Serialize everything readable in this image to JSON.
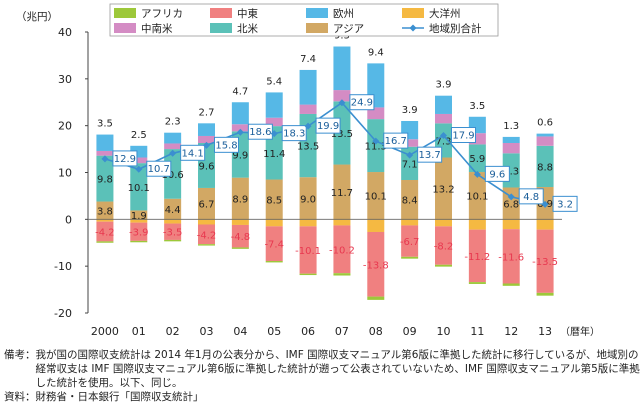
{
  "chart_data": {
    "type": "bar",
    "unit_label": "（兆円）",
    "xunit_label": "（暦年）",
    "categories": [
      "2000",
      "01",
      "02",
      "03",
      "04",
      "05",
      "06",
      "07",
      "08",
      "09",
      "10",
      "11",
      "12",
      "13"
    ],
    "ylim": [
      -20,
      40
    ],
    "yticks": [
      -20,
      -10,
      0,
      10,
      20,
      30,
      40
    ],
    "grid": false,
    "legend_position": "top",
    "series": [
      {
        "name": "アフリカ",
        "color": "#9dc83a",
        "values": [
          -0.3,
          -0.3,
          -0.3,
          -0.3,
          -0.3,
          -0.3,
          -0.3,
          -0.5,
          -0.7,
          -0.4,
          -0.4,
          -0.4,
          -0.5,
          -0.6
        ]
      },
      {
        "name": "中東",
        "color": "#f08080",
        "values": [
          -4.2,
          -3.9,
          -3.5,
          -4.2,
          -4.8,
          -7.4,
          -10.1,
          -10.2,
          -13.8,
          -6.7,
          -8.2,
          -11.2,
          -11.6,
          -13.5
        ],
        "labels": [
          "-4.2",
          "-3.9",
          "-3.5",
          "-4.2",
          "-4.8",
          "-7.4",
          "-10.1",
          "-10.2",
          "-13.8",
          "-6.7",
          "-8.2",
          "-11.2",
          "-11.6",
          "-13.5"
        ]
      },
      {
        "name": "欧州",
        "color": "#56b8e6",
        "values": [
          3.5,
          2.5,
          2.3,
          2.7,
          4.7,
          5.4,
          7.4,
          9.3,
          9.4,
          3.9,
          3.9,
          3.5,
          1.3,
          0.6
        ],
        "labels": [
          "3.5",
          "2.5",
          "2.3",
          "2.7",
          "4.7",
          "5.4",
          "7.4",
          "9.3",
          "9.4",
          "3.9",
          "3.9",
          "3.5",
          "1.3",
          "0.6"
        ]
      },
      {
        "name": "大洋州",
        "color": "#f5b942",
        "values": [
          -0.5,
          -0.7,
          -0.9,
          -1.1,
          -1.2,
          -1.5,
          -1.5,
          -1.3,
          -2.7,
          -1.3,
          -1.5,
          -2.2,
          -2.1,
          -2.2
        ]
      },
      {
        "name": "中南米",
        "color": "#d48cc4",
        "values": [
          1.0,
          1.2,
          1.2,
          1.5,
          1.5,
          1.8,
          2.0,
          2.4,
          2.5,
          1.6,
          2.0,
          2.4,
          2.2,
          2.0
        ]
      },
      {
        "name": "北米",
        "color": "#5bc1b8",
        "values": [
          9.8,
          10.1,
          10.6,
          9.6,
          9.9,
          11.4,
          13.5,
          13.5,
          11.3,
          7.1,
          7.3,
          5.9,
          7.3,
          8.8
        ],
        "labels": [
          "9.8",
          "10.1",
          "10.6",
          "9.6",
          "9.9",
          "11.4",
          "13.5",
          "13.5",
          "11.3",
          "7.1",
          "7.3",
          "5.9",
          "7.3",
          "8.8"
        ]
      },
      {
        "name": "アジア",
        "color": "#d2a864",
        "values": [
          3.8,
          1.9,
          4.4,
          6.7,
          8.9,
          8.5,
          9.0,
          11.7,
          10.1,
          8.4,
          13.2,
          10.1,
          6.8,
          6.9
        ],
        "labels": [
          "3.8",
          "1.9",
          "4.4",
          "6.7",
          "8.9",
          "8.5",
          "9.0",
          "11.7",
          "10.1",
          "8.4",
          "13.2",
          "10.1",
          "6.8",
          "6.9"
        ]
      }
    ],
    "total": {
      "name": "地域別合計",
      "color": "#3b8fd0",
      "values": [
        12.9,
        10.7,
        14.1,
        15.8,
        18.6,
        18.3,
        19.9,
        24.9,
        16.7,
        13.7,
        17.9,
        9.6,
        4.8,
        3.2
      ],
      "labels": [
        "12.9",
        "10.7",
        "14.1",
        "15.8",
        "18.6",
        "18.3",
        "19.9",
        "24.9",
        "16.7",
        "13.7",
        "17.9",
        "9.6",
        "4.8",
        "3.2"
      ]
    },
    "legend_order": [
      "アフリカ",
      "中東",
      "欧州",
      "大洋州",
      "中南米",
      "北米",
      "アジア",
      "地域別合計"
    ]
  },
  "notes": {
    "remarks_label": "備考：",
    "remarks_text": "我が国の国際収支統計は 2014 年1月の公表分から、IMF 国際収支マニュアル第6版に準拠した統計に移行しているが、地域別の経常収支は IMF 国際収支マニュアル第6版に準拠した統計が遡って公表されていないため、IMF 国際収支マニュアル第5版に準拠した統計を使用。以下、同じ。",
    "source_label": "資料：",
    "source_text": "財務省・日本銀行「国際収支統計」"
  }
}
